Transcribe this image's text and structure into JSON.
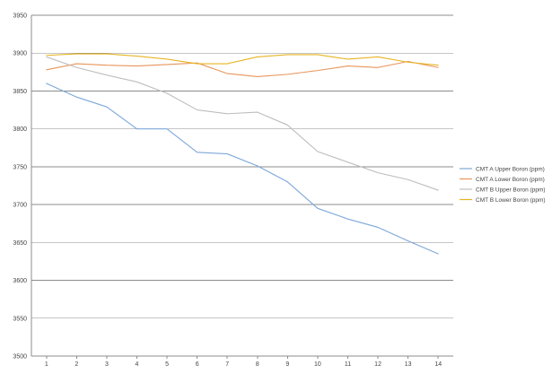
{
  "chart_data": {
    "type": "line",
    "title": "",
    "xlabel": "",
    "ylabel": "",
    "x": [
      1,
      2,
      3,
      4,
      5,
      6,
      7,
      8,
      9,
      10,
      11,
      12,
      13,
      14
    ],
    "xlim": [
      0.5,
      14.5
    ],
    "ylim": [
      3500,
      3950
    ],
    "y_ticks": [
      3500,
      3550,
      3600,
      3650,
      3700,
      3750,
      3800,
      3850,
      3900,
      3950
    ],
    "grid": true,
    "legend_position": "right",
    "series": [
      {
        "name": "CMT A Upper Boron (ppm)",
        "color": "#7da7d9",
        "values": [
          3860,
          3842,
          3829,
          3800,
          3800,
          3769,
          3767,
          3751,
          3730,
          3695,
          3681,
          3670,
          3652,
          3635
        ]
      },
      {
        "name": "CMT A Lower Boron (ppm)",
        "color": "#e8955a",
        "values": [
          3878,
          3886,
          3884,
          3883,
          3885,
          3887,
          3873,
          3869,
          3872,
          3877,
          3883,
          3881,
          3889,
          3881
        ]
      },
      {
        "name": "CMT B Upper Boron (ppm)",
        "color": "#bdbdbd",
        "values": [
          3895,
          3881,
          3871,
          3862,
          3847,
          3825,
          3820,
          3822,
          3805,
          3770,
          3756,
          3742,
          3733,
          3719
        ]
      },
      {
        "name": "CMT B Lower Boron (ppm)",
        "color": "#e6b422",
        "values": [
          3897,
          3899,
          3899,
          3896,
          3892,
          3886,
          3886,
          3895,
          3898,
          3898,
          3892,
          3895,
          3888,
          3884
        ]
      }
    ]
  }
}
